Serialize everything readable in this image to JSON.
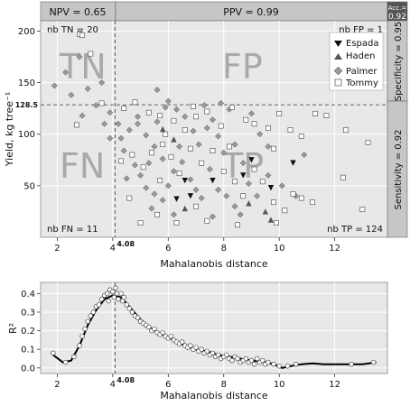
{
  "chart_data": [
    {
      "type": "scatter",
      "xlabel": "Mahalanobis distance",
      "ylabel": "Yield, kg tree⁻¹",
      "xlim": [
        1.4,
        13.9
      ],
      "ylim": [
        0,
        210
      ],
      "xticks": [
        "2",
        "4",
        "6",
        "8",
        "10",
        "12"
      ],
      "xtick_values": [
        2,
        4,
        6,
        8,
        10,
        12
      ],
      "yticks": [
        "50",
        "100",
        "150",
        "200"
      ],
      "ytick_values": [
        50,
        100,
        150,
        200
      ],
      "grid": true,
      "background": "#e8e8e8",
      "threshold_x": 4.08,
      "threshold_x_label": "4.08",
      "threshold_y": 128.5,
      "threshold_y_label": "128.5",
      "strips": {
        "npv": "NPV = 0.65",
        "ppv": "PPV = 0.99",
        "acc_label": "Acc.=",
        "acc_value": "0.92",
        "specificity": "Specificity = 0.95",
        "sensitivity": "Sensitivity = 0.92"
      },
      "quadrants": [
        "TN",
        "FP",
        "FN",
        "TP"
      ],
      "counts": {
        "tn": "nb TN = 20",
        "fp": "nb FP = 1",
        "fn": "nb FN = 11",
        "tp": "nb TP = 124"
      },
      "legend": {
        "position": "top-right",
        "entries": [
          {
            "name": "Espada",
            "marker": "triangle-down",
            "color": "#111111"
          },
          {
            "name": "Haden",
            "marker": "triangle-up",
            "color": "#555555"
          },
          {
            "name": "Palmer",
            "marker": "diamond",
            "color": "#999999"
          },
          {
            "name": "Tommy",
            "marker": "square-open",
            "color": "#ffffff"
          }
        ]
      },
      "series": [
        {
          "name": "Espada",
          "points": [
            [
              6.3,
              37
            ],
            [
              6.6,
              55
            ],
            [
              6.8,
              40
            ],
            [
              8.7,
              60
            ],
            [
              9.0,
              75
            ],
            [
              9.7,
              48
            ],
            [
              10.5,
              72
            ],
            [
              7.6,
              55
            ]
          ]
        },
        {
          "name": "Haden",
          "points": [
            [
              6.6,
              28
            ],
            [
              9.5,
              25
            ],
            [
              9.7,
              17
            ],
            [
              8.9,
              33
            ],
            [
              6.2,
              95
            ],
            [
              5.8,
              105
            ]
          ]
        },
        {
          "name": "Palmer",
          "points": [
            [
              1.9,
              147
            ],
            [
              2.3,
              160
            ],
            [
              2.8,
              175
            ],
            [
              2.5,
              138
            ],
            [
              3.1,
              144
            ],
            [
              3.6,
              150
            ],
            [
              3.4,
              128
            ],
            [
              2.9,
              118
            ],
            [
              3.7,
              110
            ],
            [
              3.9,
              121
            ],
            [
              4.2,
              110
            ],
            [
              4.3,
              96
            ],
            [
              4.6,
              104
            ],
            [
              4.9,
              117
            ],
            [
              5.2,
              99
            ],
            [
              5.5,
              88
            ],
            [
              5.6,
              112
            ],
            [
              5.3,
              72
            ],
            [
              5.9,
              126
            ],
            [
              6.3,
              124
            ],
            [
              6.6,
              117
            ],
            [
              6.9,
              103
            ],
            [
              7.1,
              90
            ],
            [
              7.3,
              128
            ],
            [
              7.6,
              114
            ],
            [
              7.8,
              98
            ],
            [
              8.0,
              82
            ],
            [
              8.4,
              90
            ],
            [
              8.7,
              72
            ],
            [
              9.0,
              120
            ],
            [
              9.3,
              100
            ],
            [
              9.6,
              88
            ],
            [
              4.5,
              57
            ],
            [
              4.8,
              70
            ],
            [
              5.0,
              60
            ],
            [
              5.2,
              48
            ],
            [
              5.5,
              42
            ],
            [
              5.8,
              36
            ],
            [
              6.0,
              50
            ],
            [
              6.2,
              64
            ],
            [
              6.5,
              73
            ],
            [
              6.8,
              56
            ],
            [
              7.0,
              46
            ],
            [
              7.2,
              38
            ],
            [
              7.5,
              66
            ],
            [
              7.8,
              46
            ],
            [
              8.1,
              40
            ],
            [
              8.4,
              30
            ],
            [
              8.6,
              22
            ],
            [
              8.9,
              52
            ],
            [
              9.2,
              40
            ],
            [
              9.6,
              60
            ],
            [
              10.1,
              50
            ],
            [
              10.6,
              40
            ],
            [
              10.9,
              80
            ],
            [
              6.2,
              22
            ],
            [
              7.6,
              20
            ],
            [
              5.4,
              28
            ],
            [
              4.9,
              110
            ],
            [
              5.8,
              76
            ],
            [
              6.4,
              88
            ],
            [
              7.4,
              106
            ],
            [
              8.2,
              124
            ],
            [
              4.4,
              84
            ],
            [
              3.9,
              96
            ],
            [
              7.9,
              130
            ],
            [
              5.6,
              143
            ],
            [
              6.0,
              132
            ]
          ]
        },
        {
          "name": "Tommy",
          "points": [
            [
              2.8,
              197
            ],
            [
              2.9,
              196
            ],
            [
              3.2,
              178
            ],
            [
              3.6,
              130
            ],
            [
              2.7,
              109
            ],
            [
              4.4,
              125
            ],
            [
              4.8,
              131
            ],
            [
              5.3,
              121
            ],
            [
              5.7,
              118
            ],
            [
              6.2,
              113
            ],
            [
              6.6,
              104
            ],
            [
              7.0,
              117
            ],
            [
              7.4,
              122
            ],
            [
              7.9,
              108
            ],
            [
              8.3,
              126
            ],
            [
              8.8,
              114
            ],
            [
              9.1,
              110
            ],
            [
              9.6,
              106
            ],
            [
              10.0,
              120
            ],
            [
              10.4,
              104
            ],
            [
              10.8,
              98
            ],
            [
              11.3,
              120
            ],
            [
              11.7,
              118
            ],
            [
              12.4,
              104
            ],
            [
              13.2,
              92
            ],
            [
              4.3,
              74
            ],
            [
              4.7,
              80
            ],
            [
              5.1,
              68
            ],
            [
              5.4,
              82
            ],
            [
              5.8,
              90
            ],
            [
              6.1,
              78
            ],
            [
              6.4,
              62
            ],
            [
              6.8,
              86
            ],
            [
              7.2,
              72
            ],
            [
              7.6,
              84
            ],
            [
              8.0,
              64
            ],
            [
              8.4,
              54
            ],
            [
              8.7,
              40
            ],
            [
              9.1,
              66
            ],
            [
              9.4,
              54
            ],
            [
              9.8,
              34
            ],
            [
              10.2,
              26
            ],
            [
              10.5,
              42
            ],
            [
              10.8,
              38
            ],
            [
              4.6,
              38
            ],
            [
              5.0,
              14
            ],
            [
              5.6,
              22
            ],
            [
              6.3,
              14
            ],
            [
              7.4,
              16
            ],
            [
              8.5,
              12
            ],
            [
              9.9,
              14
            ],
            [
              11.2,
              34
            ],
            [
              12.3,
              58
            ],
            [
              13.0,
              27
            ],
            [
              5.7,
              55
            ],
            [
              7.0,
              30
            ],
            [
              8.2,
              88
            ],
            [
              9.8,
              86
            ],
            [
              5.9,
              100
            ],
            [
              6.9,
              127
            ]
          ]
        }
      ]
    },
    {
      "type": "scatter",
      "xlabel": "Mahalanobis distance",
      "ylabel": "R²",
      "xlim": [
        1.4,
        13.9
      ],
      "ylim": [
        -0.03,
        0.46
      ],
      "xticks": [
        "2",
        "4",
        "6",
        "8",
        "10",
        "12"
      ],
      "xtick_values": [
        2,
        4,
        6,
        8,
        10,
        12
      ],
      "yticks": [
        "0.0",
        "0.1",
        "0.2",
        "0.3",
        "0.4"
      ],
      "ytick_values": [
        0.0,
        0.1,
        0.2,
        0.3,
        0.4
      ],
      "grid": true,
      "threshold_x": 4.08,
      "threshold_x_label": "4.08",
      "curve": [
        [
          1.85,
          0.07
        ],
        [
          2.2,
          0.03
        ],
        [
          2.5,
          0.04
        ],
        [
          2.8,
          0.12
        ],
        [
          3.1,
          0.23
        ],
        [
          3.4,
          0.31
        ],
        [
          3.7,
          0.37
        ],
        [
          4.0,
          0.39
        ],
        [
          4.3,
          0.38
        ],
        [
          4.6,
          0.33
        ],
        [
          5.0,
          0.26
        ],
        [
          5.4,
          0.21
        ],
        [
          5.8,
          0.18
        ],
        [
          6.2,
          0.15
        ],
        [
          6.6,
          0.12
        ],
        [
          7.0,
          0.1
        ],
        [
          7.4,
          0.09
        ],
        [
          7.8,
          0.07
        ],
        [
          8.2,
          0.06
        ],
        [
          8.6,
          0.05
        ],
        [
          9.0,
          0.04
        ],
        [
          9.4,
          0.035
        ],
        [
          9.8,
          0.02
        ],
        [
          10.1,
          0.0
        ],
        [
          10.4,
          0.01
        ],
        [
          10.8,
          0.02
        ],
        [
          11.2,
          0.025
        ],
        [
          11.6,
          0.02
        ],
        [
          12.0,
          0.02
        ],
        [
          12.5,
          0.02
        ],
        [
          13.0,
          0.02
        ],
        [
          13.5,
          0.03
        ]
      ],
      "points": [
        [
          1.85,
          0.08
        ],
        [
          2.3,
          0.03
        ],
        [
          2.6,
          0.06
        ],
        [
          2.8,
          0.12
        ],
        [
          2.9,
          0.17
        ],
        [
          3.0,
          0.21
        ],
        [
          3.1,
          0.25
        ],
        [
          3.2,
          0.28
        ],
        [
          3.3,
          0.3
        ],
        [
          3.4,
          0.33
        ],
        [
          3.5,
          0.34
        ],
        [
          3.6,
          0.37
        ],
        [
          3.7,
          0.39
        ],
        [
          3.8,
          0.4
        ],
        [
          3.85,
          0.36
        ],
        [
          3.9,
          0.42
        ],
        [
          4.0,
          0.41
        ],
        [
          4.05,
          0.38
        ],
        [
          4.1,
          0.43
        ],
        [
          4.15,
          0.4
        ],
        [
          4.2,
          0.37
        ],
        [
          4.3,
          0.4
        ],
        [
          4.35,
          0.36
        ],
        [
          4.4,
          0.38
        ],
        [
          4.5,
          0.34
        ],
        [
          4.6,
          0.32
        ],
        [
          4.7,
          0.3
        ],
        [
          4.8,
          0.28
        ],
        [
          4.9,
          0.27
        ],
        [
          5.0,
          0.25
        ],
        [
          5.1,
          0.24
        ],
        [
          5.2,
          0.23
        ],
        [
          5.3,
          0.22
        ],
        [
          5.4,
          0.2
        ],
        [
          5.5,
          0.21
        ],
        [
          5.6,
          0.19
        ],
        [
          5.7,
          0.18
        ],
        [
          5.8,
          0.19
        ],
        [
          5.9,
          0.17
        ],
        [
          6.0,
          0.16
        ],
        [
          6.1,
          0.17
        ],
        [
          6.2,
          0.15
        ],
        [
          6.3,
          0.14
        ],
        [
          6.4,
          0.13
        ],
        [
          6.5,
          0.14
        ],
        [
          6.6,
          0.12
        ],
        [
          6.7,
          0.11
        ],
        [
          6.8,
          0.12
        ],
        [
          6.9,
          0.1
        ],
        [
          7.0,
          0.11
        ],
        [
          7.1,
          0.09
        ],
        [
          7.2,
          0.1
        ],
        [
          7.3,
          0.08
        ],
        [
          7.4,
          0.09
        ],
        [
          7.5,
          0.07
        ],
        [
          7.6,
          0.08
        ],
        [
          7.7,
          0.06
        ],
        [
          7.8,
          0.07
        ],
        [
          7.9,
          0.05
        ],
        [
          8.0,
          0.06
        ],
        [
          8.1,
          0.07
        ],
        [
          8.2,
          0.05
        ],
        [
          8.3,
          0.04
        ],
        [
          8.4,
          0.06
        ],
        [
          8.5,
          0.05
        ],
        [
          8.6,
          0.03
        ],
        [
          8.7,
          0.04
        ],
        [
          8.8,
          0.05
        ],
        [
          8.9,
          0.03
        ],
        [
          9.0,
          0.04
        ],
        [
          9.1,
          0.02
        ],
        [
          9.2,
          0.05
        ],
        [
          9.3,
          0.03
        ],
        [
          9.4,
          0.04
        ],
        [
          9.5,
          0.02
        ],
        [
          9.6,
          0.03
        ],
        [
          9.8,
          0.02
        ],
        [
          10.0,
          0.01
        ],
        [
          10.3,
          0.01
        ],
        [
          10.6,
          0.02
        ],
        [
          12.6,
          0.02
        ],
        [
          13.4,
          0.03
        ]
      ]
    }
  ]
}
